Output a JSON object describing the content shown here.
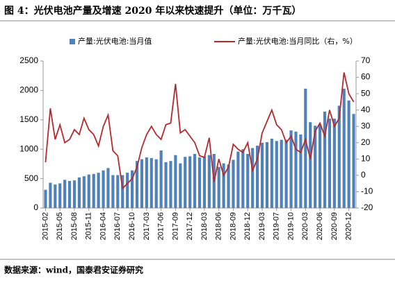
{
  "chart_data": {
    "type": "bar-line",
    "title": "图 4：光伏电池产量及增速 2020 年以来快速提升（单位：万千瓦）",
    "source": "数据来源：wind，国泰君安证券研究",
    "categories": [
      "2015-02",
      null,
      null,
      "2015-05",
      null,
      null,
      "2015-08",
      null,
      null,
      "2015-11",
      null,
      null,
      "2016-04",
      null,
      null,
      "2016-07",
      null,
      null,
      "2016-10",
      null,
      null,
      "2017-03",
      null,
      null,
      "2017-06",
      null,
      null,
      "2017-09",
      null,
      null,
      "2017-12",
      null,
      null,
      "2018-03",
      null,
      null,
      "2018-06",
      null,
      null,
      "2018-09",
      null,
      null,
      "2018-12",
      null,
      null,
      "2019-03",
      null,
      null,
      "2019-07",
      null,
      null,
      "2019-10",
      null,
      null,
      "2020-03",
      null,
      null,
      "2020-06",
      null,
      null,
      "2020-09",
      null,
      null,
      "2020-12",
      null
    ],
    "series": [
      {
        "name": "产量:光伏电池:当月值",
        "type": "bar",
        "color": "#4f81bd",
        "axis": "y",
        "values": [
          310,
          430,
          400,
          420,
          480,
          460,
          470,
          520,
          540,
          570,
          580,
          600,
          640,
          680,
          560,
          560,
          560,
          600,
          640,
          800,
          830,
          860,
          850,
          830,
          980,
          780,
          800,
          900,
          760,
          870,
          880,
          920,
          860,
          880,
          900,
          920,
          700,
          760,
          740,
          820,
          960,
          1000,
          920,
          1020,
          1060,
          1110,
          1120,
          1180,
          1140,
          1160,
          1160,
          1320,
          1300,
          1250,
          2030,
          1460,
          1400,
          1420,
          1640,
          1520,
          1520,
          1740,
          2030,
          1830,
          1600
        ]
      },
      {
        "name": "产量:光伏电池:当月同比（右，%）",
        "type": "line",
        "color": "#b8282b",
        "axis": "y2",
        "values": [
          8,
          41,
          22,
          31,
          20,
          22,
          28,
          25,
          35,
          28,
          25,
          18,
          30,
          37,
          15,
          12,
          -8,
          -5,
          -2,
          5,
          17,
          25,
          30,
          25,
          22,
          31,
          32,
          56,
          26,
          28,
          24,
          20,
          12,
          11,
          23,
          -4,
          10,
          0,
          5,
          19,
          16,
          14,
          20,
          3,
          10,
          26,
          33,
          40,
          31,
          28,
          20,
          24,
          16,
          14,
          22,
          10,
          27,
          32,
          24,
          40,
          30,
          35,
          63,
          50,
          45
        ]
      }
    ],
    "ylim": [
      0,
      2500
    ],
    "yticks": [
      0,
      500,
      1000,
      1500,
      2000,
      2500
    ],
    "y2lim": [
      -20,
      70
    ],
    "y2ticks": [
      -20,
      -10,
      0,
      10,
      20,
      30,
      40,
      50,
      60,
      70
    ]
  }
}
